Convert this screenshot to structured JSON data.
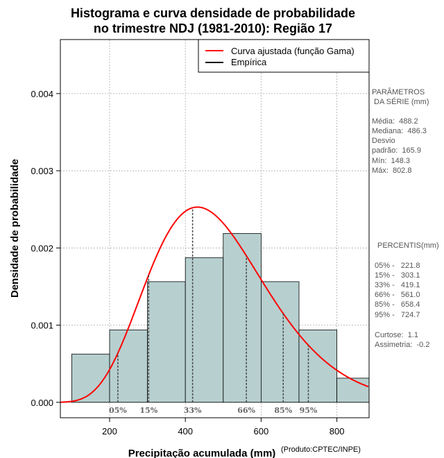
{
  "chart_data": {
    "type": "bar",
    "title": [
      "Histograma e curva densidade de probabilidade",
      "no trimestre NDJ (1981-2010): Região 17"
    ],
    "xlabel": "Precipitação acumulada (mm)",
    "ylabel": "Densidade de probabilidade",
    "credit": "(Produto:CPTEC/INPE)",
    "xlim": [
      70,
      885
    ],
    "ylim": [
      -0.0002,
      0.0047
    ],
    "xticks": [
      200,
      400,
      600,
      800
    ],
    "xtick_labels": [
      "200",
      "400",
      "600",
      "800"
    ],
    "yticks": [
      0,
      0.001,
      0.002,
      0.003,
      0.004
    ],
    "ytick_labels": [
      "0.000",
      "0.001",
      "0.002",
      "0.003",
      "0.004"
    ],
    "grid": true,
    "bins": [
      {
        "x0": 100,
        "x1": 200,
        "value": 0.000625
      },
      {
        "x0": 200,
        "x1": 300,
        "value": 0.000937
      },
      {
        "x0": 300,
        "x1": 400,
        "value": 0.001563
      },
      {
        "x0": 400,
        "x1": 500,
        "value": 0.001875
      },
      {
        "x0": 500,
        "x1": 600,
        "value": 0.002187
      },
      {
        "x0": 600,
        "x1": 700,
        "value": 0.001563
      },
      {
        "x0": 700,
        "x1": 800,
        "value": 0.000937
      },
      {
        "x0": 800,
        "x1": 900,
        "value": 0.000313
      }
    ],
    "gamma_curve": {
      "name": "Curva ajustada (função Gama)",
      "mean": 488.2,
      "sd": 165.9,
      "color": "#ff0000"
    },
    "legend": [
      {
        "label": "Curva ajustada (função Gama)",
        "color": "#ff0000"
      },
      {
        "label": "Empírica",
        "color": "#000000"
      }
    ],
    "legend_position": "top-right",
    "percentiles": [
      {
        "label": "05%",
        "value": 221.8
      },
      {
        "label": "15%",
        "value": 303.1
      },
      {
        "label": "33%",
        "value": 419.1
      },
      {
        "label": "66%",
        "value": 561.0
      },
      {
        "label": "85%",
        "value": 658.4
      },
      {
        "label": "95%",
        "value": 724.7
      }
    ],
    "bar_color": "#b7cfcf"
  },
  "side_panel": {
    "params_title": [
      "PARÂMETROS",
      " DA SÉRIE (mm)"
    ],
    "params": [
      "Média:  488.2",
      "Mediana:  486.3",
      "Desvio",
      "padrão:  165.9",
      "Mín:  148.3",
      "Máx:  802.8"
    ],
    "percentis_title": "PERCENTIS(mm)",
    "percentis": [
      "05% -   221.8",
      "15% -   303.1",
      "33% -   419.1",
      "66% -   561.0",
      "85% -   658.4",
      "95% -   724.7"
    ],
    "extra": [
      "Curtose:  1.1",
      "Assimetria:  -0.2"
    ]
  }
}
